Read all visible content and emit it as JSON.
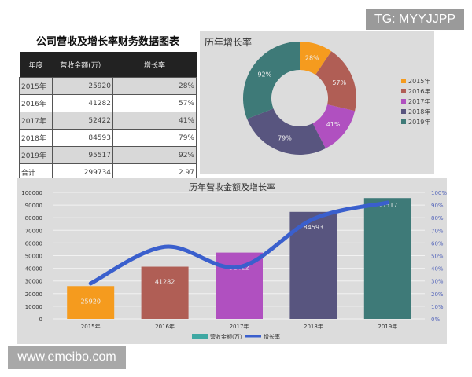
{
  "watermarks": {
    "top": "TG: MYYJJPP",
    "bottom": "www.emeibo.com"
  },
  "table": {
    "title": "公司营收及增长率财务数据图表",
    "headers": [
      "年度",
      "营收金额(万）",
      "增长率"
    ],
    "rows": [
      [
        "2015年",
        "25920",
        "28%"
      ],
      [
        "2016年",
        "41282",
        "57%"
      ],
      [
        "2017年",
        "52422",
        "41%"
      ],
      [
        "2018年",
        "84593",
        "79%"
      ],
      [
        "2019年",
        "95517",
        "92%"
      ]
    ],
    "total": [
      "合计",
      "299734",
      "2.97"
    ]
  },
  "chart_data": [
    {
      "type": "pie",
      "title": "历年增长率",
      "categories": [
        "2015年",
        "2016年",
        "2017年",
        "2018年",
        "2019年"
      ],
      "values": [
        28,
        57,
        41,
        79,
        92
      ],
      "labels": [
        "28%",
        "57%",
        "41%",
        "79%",
        "92%"
      ],
      "colors": [
        "#f59b1e",
        "#b05e55",
        "#b050c0",
        "#58557f",
        "#3e7a78"
      ],
      "legend": "right",
      "donut": true
    },
    {
      "type": "bar",
      "title": "历年营收金额及增长率",
      "categories": [
        "2015年",
        "2016年",
        "2017年",
        "2018年",
        "2019年"
      ],
      "series": [
        {
          "name": "营收金额(万）",
          "type": "bar",
          "values": [
            25920,
            41282,
            52422,
            84593,
            95517
          ],
          "colors": [
            "#f59b1e",
            "#b05e55",
            "#b050c0",
            "#58557f",
            "#3e7a78"
          ],
          "legend_color": "#3fa8a3"
        },
        {
          "name": "增长率",
          "type": "line",
          "axis": "right",
          "values": [
            28,
            57,
            41,
            79,
            92
          ],
          "color": "#3a5fcd"
        }
      ],
      "ylim": [
        0,
        100000
      ],
      "yticks": [
        0,
        10000,
        20000,
        30000,
        40000,
        50000,
        60000,
        70000,
        80000,
        90000,
        100000
      ],
      "y2lim": [
        0,
        100
      ],
      "y2ticks": [
        "0%",
        "10%",
        "20%",
        "30%",
        "40%",
        "50%",
        "60%",
        "70%",
        "80%",
        "90%",
        "100%"
      ],
      "grid": true,
      "legend": "bottom"
    }
  ]
}
